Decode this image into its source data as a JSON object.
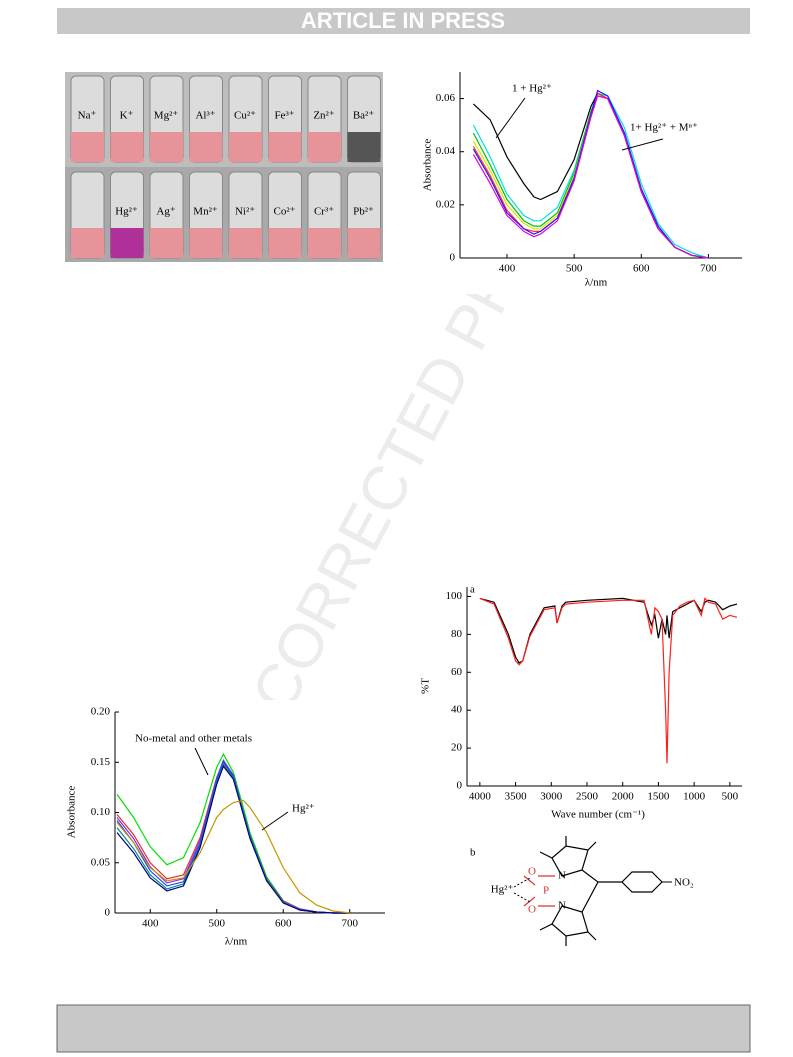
{
  "header": {
    "banner": "ARTICLE IN PRESS"
  },
  "watermark": "UNCORRECTED PROOF",
  "photo": {
    "top_row": [
      "Na⁺",
      "K⁺",
      "Mg²⁺",
      "Al³⁺",
      "Cu²⁺",
      "Fe³⁺",
      "Zn²⁺",
      "Ba²⁺"
    ],
    "bottom_row": [
      "",
      "Hg²⁺",
      "Ag⁺",
      "Mn²⁺",
      "Ni²⁺",
      "Co²⁺",
      "Cr³⁺",
      "Pb²⁺"
    ]
  },
  "chart_data": [
    {
      "type": "line",
      "x_label": "λ/nm",
      "y_label": "Absorbance",
      "annotations": [
        "1 + Hg²⁺",
        "1+ Hg²⁺ + Mⁿ⁺"
      ],
      "xlim": [
        330,
        750
      ],
      "ylim": [
        0,
        0.07
      ],
      "xticks": [
        400,
        500,
        600,
        700
      ],
      "yticks": [
        0,
        0.02,
        0.04,
        0.06
      ],
      "x": [
        350,
        375,
        400,
        425,
        440,
        450,
        475,
        500,
        525,
        535,
        550,
        575,
        600,
        625,
        650,
        675,
        700
      ],
      "series": [
        {
          "color": "#000000",
          "values": [
            0.058,
            0.052,
            0.038,
            0.028,
            0.023,
            0.022,
            0.025,
            0.037,
            0.057,
            0.062,
            0.06,
            0.046,
            0.025,
            0.011,
            0.004,
            0.001,
            0.0
          ]
        },
        {
          "color": "#00e0e0",
          "values": [
            0.05,
            0.038,
            0.024,
            0.016,
            0.014,
            0.014,
            0.019,
            0.033,
            0.055,
            0.062,
            0.061,
            0.049,
            0.028,
            0.013,
            0.005,
            0.002,
            0.0
          ]
        },
        {
          "color": "#00c000",
          "values": [
            0.047,
            0.035,
            0.022,
            0.014,
            0.012,
            0.012,
            0.017,
            0.032,
            0.055,
            0.062,
            0.06,
            0.047,
            0.026,
            0.012,
            0.004,
            0.001,
            0.0
          ]
        },
        {
          "color": "#e0e000",
          "values": [
            0.044,
            0.033,
            0.02,
            0.013,
            0.011,
            0.011,
            0.016,
            0.031,
            0.054,
            0.061,
            0.06,
            0.047,
            0.026,
            0.011,
            0.004,
            0.001,
            0.0
          ]
        },
        {
          "color": "#ff3030",
          "values": [
            0.042,
            0.031,
            0.018,
            0.011,
            0.01,
            0.01,
            0.015,
            0.03,
            0.054,
            0.062,
            0.06,
            0.046,
            0.025,
            0.011,
            0.004,
            0.001,
            0.0
          ]
        },
        {
          "color": "#1a1aff",
          "values": [
            0.041,
            0.03,
            0.017,
            0.011,
            0.009,
            0.01,
            0.015,
            0.03,
            0.054,
            0.063,
            0.061,
            0.047,
            0.026,
            0.012,
            0.004,
            0.001,
            0.0
          ]
        },
        {
          "color": "#e000e0",
          "values": [
            0.039,
            0.028,
            0.016,
            0.01,
            0.008,
            0.009,
            0.014,
            0.029,
            0.053,
            0.061,
            0.06,
            0.046,
            0.025,
            0.011,
            0.004,
            0.001,
            0.0
          ]
        }
      ]
    },
    {
      "type": "line",
      "x_label": "λ/nm",
      "y_label": "Absorbance",
      "annotations": [
        "No-metal and other metals",
        "Hg²⁺"
      ],
      "xlim": [
        347,
        753
      ],
      "ylim": [
        0,
        0.2
      ],
      "xticks": [
        400,
        500,
        600,
        700
      ],
      "yticks": [
        0,
        0.05,
        {
          "value": 0.1,
          "label": "0.10"
        },
        0.15,
        {
          "value": 0.2,
          "label": "0.20"
        }
      ],
      "x": [
        350,
        375,
        400,
        425,
        450,
        475,
        500,
        510,
        525,
        540,
        550,
        575,
        600,
        625,
        650,
        675,
        700
      ],
      "series": [
        {
          "color": "#00e000",
          "values": [
            0.118,
            0.095,
            0.066,
            0.048,
            0.055,
            0.09,
            0.145,
            0.158,
            0.14,
            0.105,
            0.08,
            0.036,
            0.012,
            0.004,
            0.001,
            0.0,
            0.0
          ]
        },
        {
          "color": "#e03030",
          "values": [
            0.098,
            0.078,
            0.05,
            0.034,
            0.038,
            0.075,
            0.135,
            0.15,
            0.135,
            0.1,
            0.076,
            0.034,
            0.012,
            0.004,
            0.001,
            0.0,
            0.0
          ]
        },
        {
          "color": "#8a2be2",
          "values": [
            0.095,
            0.074,
            0.046,
            0.03,
            0.034,
            0.072,
            0.134,
            0.152,
            0.137,
            0.101,
            0.077,
            0.034,
            0.011,
            0.004,
            0.001,
            0.0,
            0.0
          ]
        },
        {
          "color": "#2040ff",
          "values": [
            0.092,
            0.07,
            0.042,
            0.027,
            0.031,
            0.069,
            0.132,
            0.151,
            0.136,
            0.1,
            0.076,
            0.033,
            0.011,
            0.003,
            0.001,
            0.0,
            0.0
          ]
        },
        {
          "color": "#008b8b",
          "values": [
            0.085,
            0.064,
            0.038,
            0.024,
            0.029,
            0.067,
            0.13,
            0.148,
            0.134,
            0.099,
            0.075,
            0.033,
            0.011,
            0.003,
            0.001,
            0.0,
            0.0
          ]
        },
        {
          "color": "#000080",
          "values": [
            0.08,
            0.06,
            0.035,
            0.022,
            0.027,
            0.065,
            0.128,
            0.146,
            0.133,
            0.098,
            0.074,
            0.032,
            0.01,
            0.003,
            0.001,
            0.0,
            0.0
          ]
        },
        {
          "color": "#c89600",
          "values": [
            0.09,
            0.07,
            0.045,
            0.032,
            0.035,
            0.06,
            0.095,
            0.103,
            0.11,
            0.112,
            0.105,
            0.08,
            0.045,
            0.02,
            0.008,
            0.002,
            0.0
          ]
        }
      ]
    },
    {
      "type": "line",
      "panel_label": "a",
      "x_label": "Wave number (cm⁻¹)",
      "y_label": "%T",
      "xlim": [
        4180,
        330
      ],
      "ylim": [
        0,
        105
      ],
      "xticks": [
        4000,
        3500,
        3000,
        2500,
        2000,
        1500,
        1000,
        500
      ],
      "yticks": [
        0,
        20,
        40,
        60,
        80,
        100
      ],
      "x": [
        4000,
        3800,
        3600,
        3500,
        3450,
        3400,
        3300,
        3100,
        2950,
        2920,
        2850,
        2800,
        2500,
        2000,
        1700,
        1600,
        1550,
        1500,
        1450,
        1400,
        1380,
        1350,
        1300,
        1200,
        1100,
        1000,
        900,
        850,
        800,
        700,
        600,
        500,
        400
      ],
      "series": [
        {
          "color": "#000000",
          "values": [
            99,
            97,
            80,
            68,
            65,
            66,
            80,
            94,
            95,
            86,
            95,
            97,
            98,
            99,
            97,
            85,
            90,
            78,
            88,
            80,
            90,
            78,
            92,
            94,
            96,
            98,
            92,
            97,
            98,
            97,
            93,
            95,
            96
          ]
        },
        {
          "color": "#ff2020",
          "values": [
            99,
            96,
            78,
            66,
            64,
            66,
            79,
            93,
            94,
            86,
            94,
            96,
            97,
            98,
            98,
            80,
            94,
            92,
            88,
            40,
            12,
            60,
            90,
            95,
            97,
            98,
            90,
            99,
            97,
            96,
            88,
            90,
            89
          ]
        }
      ]
    }
  ],
  "structure": {
    "panel_label": "b",
    "metal": "Hg²⁺",
    "o_top": "O",
    "p": "P",
    "o_bottom": "O",
    "n_top": "N",
    "n_bottom": "N",
    "substituent": "NO₂"
  }
}
